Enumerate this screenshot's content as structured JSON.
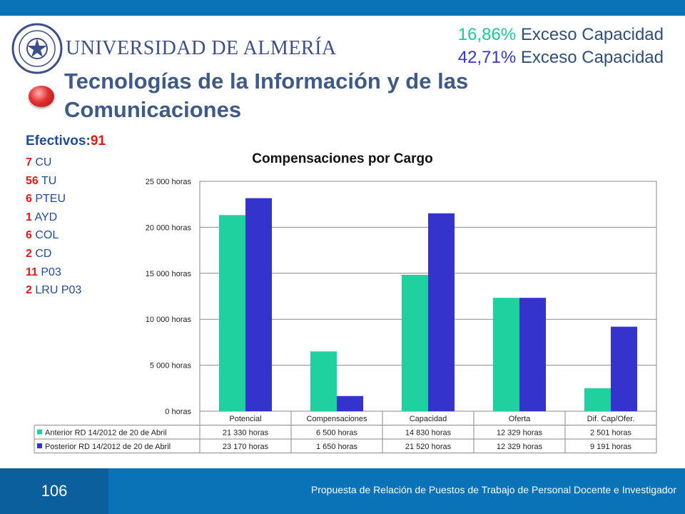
{
  "header": {
    "university": "UNIVERSIDAD DE ALMERÍA",
    "capacity_lines": [
      {
        "pct": "16,86%",
        "text": "Exceso Capacidad",
        "color": "#1fc79a"
      },
      {
        "pct": "42,71%",
        "text": "Exceso Capacidad",
        "color": "#3535c8"
      }
    ],
    "title": "Tecnologías de la Información y de las Comunicaciones"
  },
  "staff": {
    "label": "Efectivos:",
    "total": "91",
    "items": [
      {
        "count": "7",
        "category": "CU"
      },
      {
        "count": "56",
        "category": "TU"
      },
      {
        "count": "6",
        "category": "PTEU"
      },
      {
        "count": "1",
        "category": "AYD"
      },
      {
        "count": "6",
        "category": "COL"
      },
      {
        "count": "2",
        "category": "CD"
      },
      {
        "count": "11",
        "category": "P03"
      },
      {
        "count": "2",
        "category": "LRU P03"
      }
    ]
  },
  "chart_data": {
    "type": "bar",
    "title": "Compensaciones por Cargo",
    "categories": [
      "Potencial",
      "Compensaciones",
      "Capacidad",
      "Oferta",
      "Dif. Cap/Ofer."
    ],
    "ylim": [
      0,
      25000
    ],
    "yticks": [
      "0 horas",
      "5 000 horas",
      "10 000 horas",
      "15 000 horas",
      "20 000 horas",
      "25 000 horas"
    ],
    "ytick_values": [
      0,
      5000,
      10000,
      15000,
      20000,
      25000
    ],
    "grid": true,
    "legend_placement": "data-table",
    "series": [
      {
        "name": "Anterior RD 14/2012 de 20 de Abril",
        "color": "#1fd19f",
        "values": [
          21330,
          6500,
          14830,
          12329,
          2501
        ],
        "labels": [
          "21 330 horas",
          "6 500 horas",
          "14 830 horas",
          "12 329 horas",
          "2 501 horas"
        ]
      },
      {
        "name": "Posterior RD 14/2012 de 20 de Abril",
        "color": "#3434cc",
        "values": [
          23170,
          1650,
          21520,
          12329,
          9191
        ],
        "labels": [
          "23 170 horas",
          "1 650 horas",
          "21 520 horas",
          "12 329 horas",
          "9 191 horas"
        ]
      }
    ]
  },
  "footer": {
    "page_number": "106",
    "text": "Propuesta de Relación de Puestos de Trabajo de Personal Docente e Investigador"
  }
}
